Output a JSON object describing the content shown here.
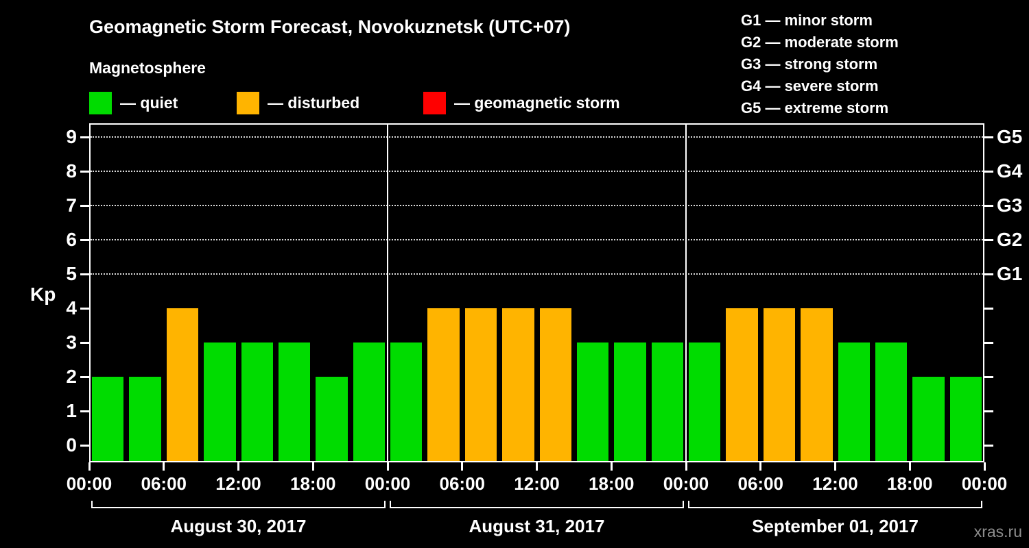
{
  "title": "Geomagnetic Storm Forecast, Novokuznetsk (UTC+07)",
  "subtitle": "Magnetosphere",
  "watermark": "xras.ru",
  "colors": {
    "quiet": "#00dc00",
    "disturbed": "#ffb400",
    "storm": "#ff0000",
    "background": "#000000",
    "text": "#ffffff"
  },
  "legend": [
    {
      "name": "quiet",
      "label": "— quiet"
    },
    {
      "name": "disturbed",
      "label": "— disturbed"
    },
    {
      "name": "storm",
      "label": "— geomagnetic storm"
    }
  ],
  "g_legend": [
    "G1 — minor storm",
    "G2 — moderate storm",
    "G3 — strong storm",
    "G4 — severe storm",
    "G5 — extreme storm"
  ],
  "chart_data": {
    "type": "bar",
    "title": "Geomagnetic Storm Forecast, Novokuznetsk (UTC+07)",
    "subtitle": "Magnetosphere",
    "ylabel": "Kp",
    "ylim": [
      0,
      9.5
    ],
    "y_ticks": [
      0,
      1,
      2,
      3,
      4,
      5,
      6,
      7,
      8,
      9
    ],
    "grid_levels": [
      5,
      6,
      7,
      8,
      9
    ],
    "grid": "dotted horizontal lines at Kp 5-9 only",
    "legend_position": "top",
    "right_axis": [
      {
        "kp": 5,
        "label": "G1"
      },
      {
        "kp": 6,
        "label": "G2"
      },
      {
        "kp": 7,
        "label": "G3"
      },
      {
        "kp": 8,
        "label": "G4"
      },
      {
        "kp": 9,
        "label": "G5"
      }
    ],
    "x_tick_labels": [
      "00:00",
      "06:00",
      "12:00",
      "18:00",
      "00:00",
      "06:00",
      "12:00",
      "18:00",
      "00:00",
      "06:00",
      "12:00",
      "18:00",
      "00:00"
    ],
    "bin_hours": 3,
    "days": [
      {
        "date": "August 30, 2017",
        "values": [
          2,
          2,
          4,
          3,
          3,
          3,
          2,
          3
        ]
      },
      {
        "date": "August 31, 2017",
        "values": [
          3,
          4,
          4,
          4,
          4,
          3,
          3,
          3
        ]
      },
      {
        "date": "September 01, 2017",
        "values": [
          3,
          4,
          4,
          4,
          3,
          3,
          2,
          2
        ]
      }
    ],
    "color_thresholds": {
      "quiet_max_kp": 3,
      "disturbed_max_kp": 4,
      "storm_min_kp": 5
    }
  }
}
